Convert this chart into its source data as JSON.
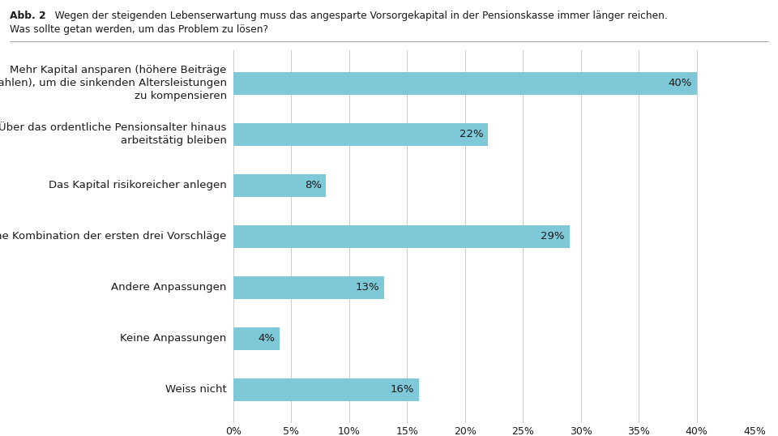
{
  "title_bold": "Abb. 2",
  "title_rest": "   Wegen der steigenden Lebenserwartung muss das angesparte Vorsorgekapital in der Pensionskasse immer länger reichen.",
  "title_line2": "Was sollte getan werden, um das Problem zu lösen?",
  "categories": [
    "Mehr Kapital ansparen (höhere Beiträge\neinzahlen), um die sinkenden Altersleistungen\nzu kompensieren",
    "Über das ordentliche Pensionsalter hinaus\narbeitstätig bleiben",
    "Das Kapital risikoreicher anlegen",
    "Eine Kombination der ersten drei Vorschläge",
    "Andere Anpassungen",
    "Keine Anpassungen",
    "Weiss nicht"
  ],
  "values": [
    40,
    22,
    8,
    29,
    13,
    4,
    16
  ],
  "bar_color": "#7ec8d8",
  "text_color": "#1a1a1a",
  "background_color": "#ffffff",
  "xlim": [
    0,
    45
  ],
  "xticks": [
    0,
    5,
    10,
    15,
    20,
    25,
    30,
    35,
    40,
    45
  ],
  "bar_height": 0.45,
  "label_fontsize": 9.5,
  "tick_fontsize": 9,
  "value_fontsize": 9.5,
  "title_fontsize": 8.8,
  "grid_color": "#cccccc",
  "separator_color": "#aaaaaa"
}
